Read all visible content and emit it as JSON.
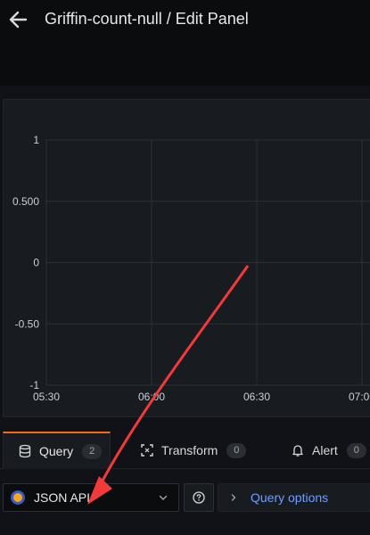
{
  "header": {
    "title": "Griffin-count-null / Edit Panel",
    "back_icon": "arrow-left-icon"
  },
  "chart_data": {
    "type": "line",
    "x_ticks": [
      "05:30",
      "06:00",
      "06:30",
      "07:00"
    ],
    "y_ticks": [
      "1",
      "0.500",
      "0",
      "-0.50",
      "-1"
    ],
    "ylim": [
      -1,
      1
    ],
    "grid": true,
    "series": []
  },
  "tabs": [
    {
      "label": "Query",
      "count": "2",
      "icon": "database-icon",
      "active": true
    },
    {
      "label": "Transform",
      "count": "0",
      "icon": "transform-icon",
      "active": false
    },
    {
      "label": "Alert",
      "count": "0",
      "icon": "bell-icon",
      "active": false
    }
  ],
  "datasource": {
    "name": "JSON API",
    "logo": "json-api-logo"
  },
  "help": {
    "icon": "question-circle-icon"
  },
  "query_options": {
    "label": "Query options"
  },
  "colors": {
    "accent_tab": "#f56b16",
    "link": "#6e9fff",
    "annotation_arrow": "#f23a3a"
  }
}
